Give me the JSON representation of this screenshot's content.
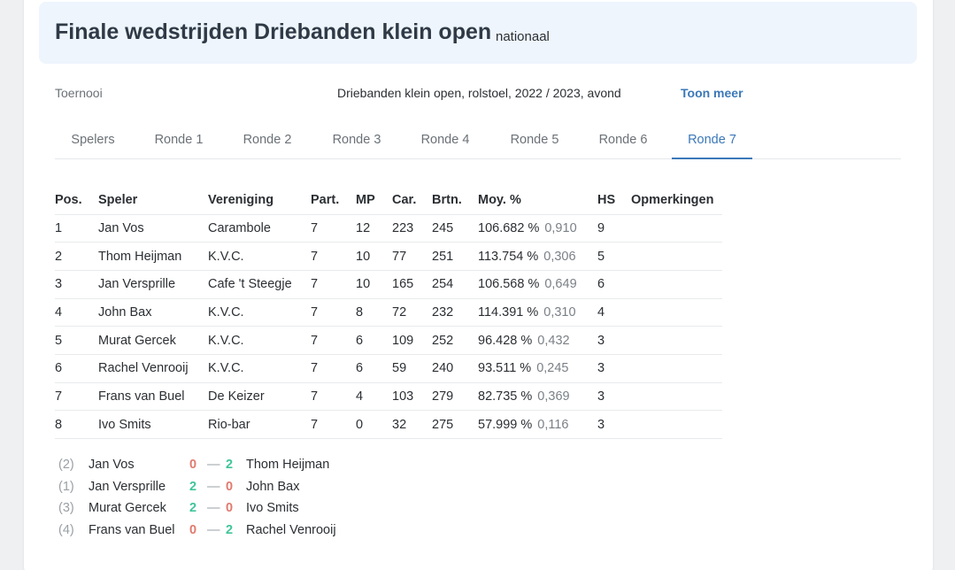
{
  "header": {
    "title": "Finale wedstrijden Driebanden klein open",
    "subtitle": "nationaal"
  },
  "info": {
    "label": "Toernooi",
    "value": "Driebanden klein open, rolstoel, 2022 / 2023, avond",
    "more": "Toon meer"
  },
  "tabs": [
    {
      "label": "Spelers"
    },
    {
      "label": "Ronde 1"
    },
    {
      "label": "Ronde 2"
    },
    {
      "label": "Ronde 3"
    },
    {
      "label": "Ronde 4"
    },
    {
      "label": "Ronde 5"
    },
    {
      "label": "Ronde 6"
    },
    {
      "label": "Ronde 7",
      "active": true
    }
  ],
  "table": {
    "headers": [
      "Pos.",
      "Speler",
      "Vereniging",
      "Part.",
      "MP",
      "Car.",
      "Brtn.",
      "Moy. %",
      "HS",
      "Opmerkingen"
    ],
    "rows": [
      {
        "pos": "1",
        "speler": "Jan Vos",
        "vereniging": "Carambole",
        "part": "7",
        "mp": "12",
        "car": "223",
        "brtn": "245",
        "moy_pct": "106.682 %",
        "moy": "0,910",
        "hs": "9",
        "opm": ""
      },
      {
        "pos": "2",
        "speler": "Thom Heijman",
        "vereniging": "K.V.C.",
        "part": "7",
        "mp": "10",
        "car": "77",
        "brtn": "251",
        "moy_pct": "113.754 %",
        "moy": "0,306",
        "hs": "5",
        "opm": ""
      },
      {
        "pos": "3",
        "speler": "Jan Versprille",
        "vereniging": "Cafe 't Steegje",
        "part": "7",
        "mp": "10",
        "car": "165",
        "brtn": "254",
        "moy_pct": "106.568 %",
        "moy": "0,649",
        "hs": "6",
        "opm": ""
      },
      {
        "pos": "4",
        "speler": "John Bax",
        "vereniging": "K.V.C.",
        "part": "7",
        "mp": "8",
        "car": "72",
        "brtn": "232",
        "moy_pct": "114.391 %",
        "moy": "0,310",
        "hs": "4",
        "opm": ""
      },
      {
        "pos": "5",
        "speler": "Murat Gercek",
        "vereniging": "K.V.C.",
        "part": "7",
        "mp": "6",
        "car": "109",
        "brtn": "252",
        "moy_pct": "96.428 %",
        "moy": "0,432",
        "hs": "3",
        "opm": ""
      },
      {
        "pos": "6",
        "speler": "Rachel Venrooij",
        "vereniging": "K.V.C.",
        "part": "7",
        "mp": "6",
        "car": "59",
        "brtn": "240",
        "moy_pct": "93.511 %",
        "moy": "0,245",
        "hs": "3",
        "opm": ""
      },
      {
        "pos": "7",
        "speler": "Frans van Buel",
        "vereniging": "De Keizer",
        "part": "7",
        "mp": "4",
        "car": "103",
        "brtn": "279",
        "moy_pct": "82.735 %",
        "moy": "0,369",
        "hs": "3",
        "opm": ""
      },
      {
        "pos": "8",
        "speler": "Ivo Smits",
        "vereniging": "Rio-bar",
        "part": "7",
        "mp": "0",
        "car": "32",
        "brtn": "275",
        "moy_pct": "57.999 %",
        "moy": "0,116",
        "hs": "3",
        "opm": ""
      }
    ]
  },
  "matches": [
    {
      "table": "(2)",
      "p1": "Jan Vos",
      "s1": "0",
      "dash": "—",
      "s2": "2",
      "p2": "Thom Heijman"
    },
    {
      "table": "(1)",
      "p1": "Jan Versprille",
      "s1": "2",
      "dash": "—",
      "s2": "0",
      "p2": "John Bax"
    },
    {
      "table": "(3)",
      "p1": "Murat Gercek",
      "s1": "2",
      "dash": "—",
      "s2": "0",
      "p2": "Ivo Smits"
    },
    {
      "table": "(4)",
      "p1": "Frans van Buel",
      "s1": "0",
      "dash": "—",
      "s2": "2",
      "p2": "Rachel Venrooij"
    }
  ],
  "colors": {
    "accent": "#3b78b8",
    "win": "#3fc59a",
    "lose": "#e07a6e",
    "header_bg": "#eef5fd"
  }
}
